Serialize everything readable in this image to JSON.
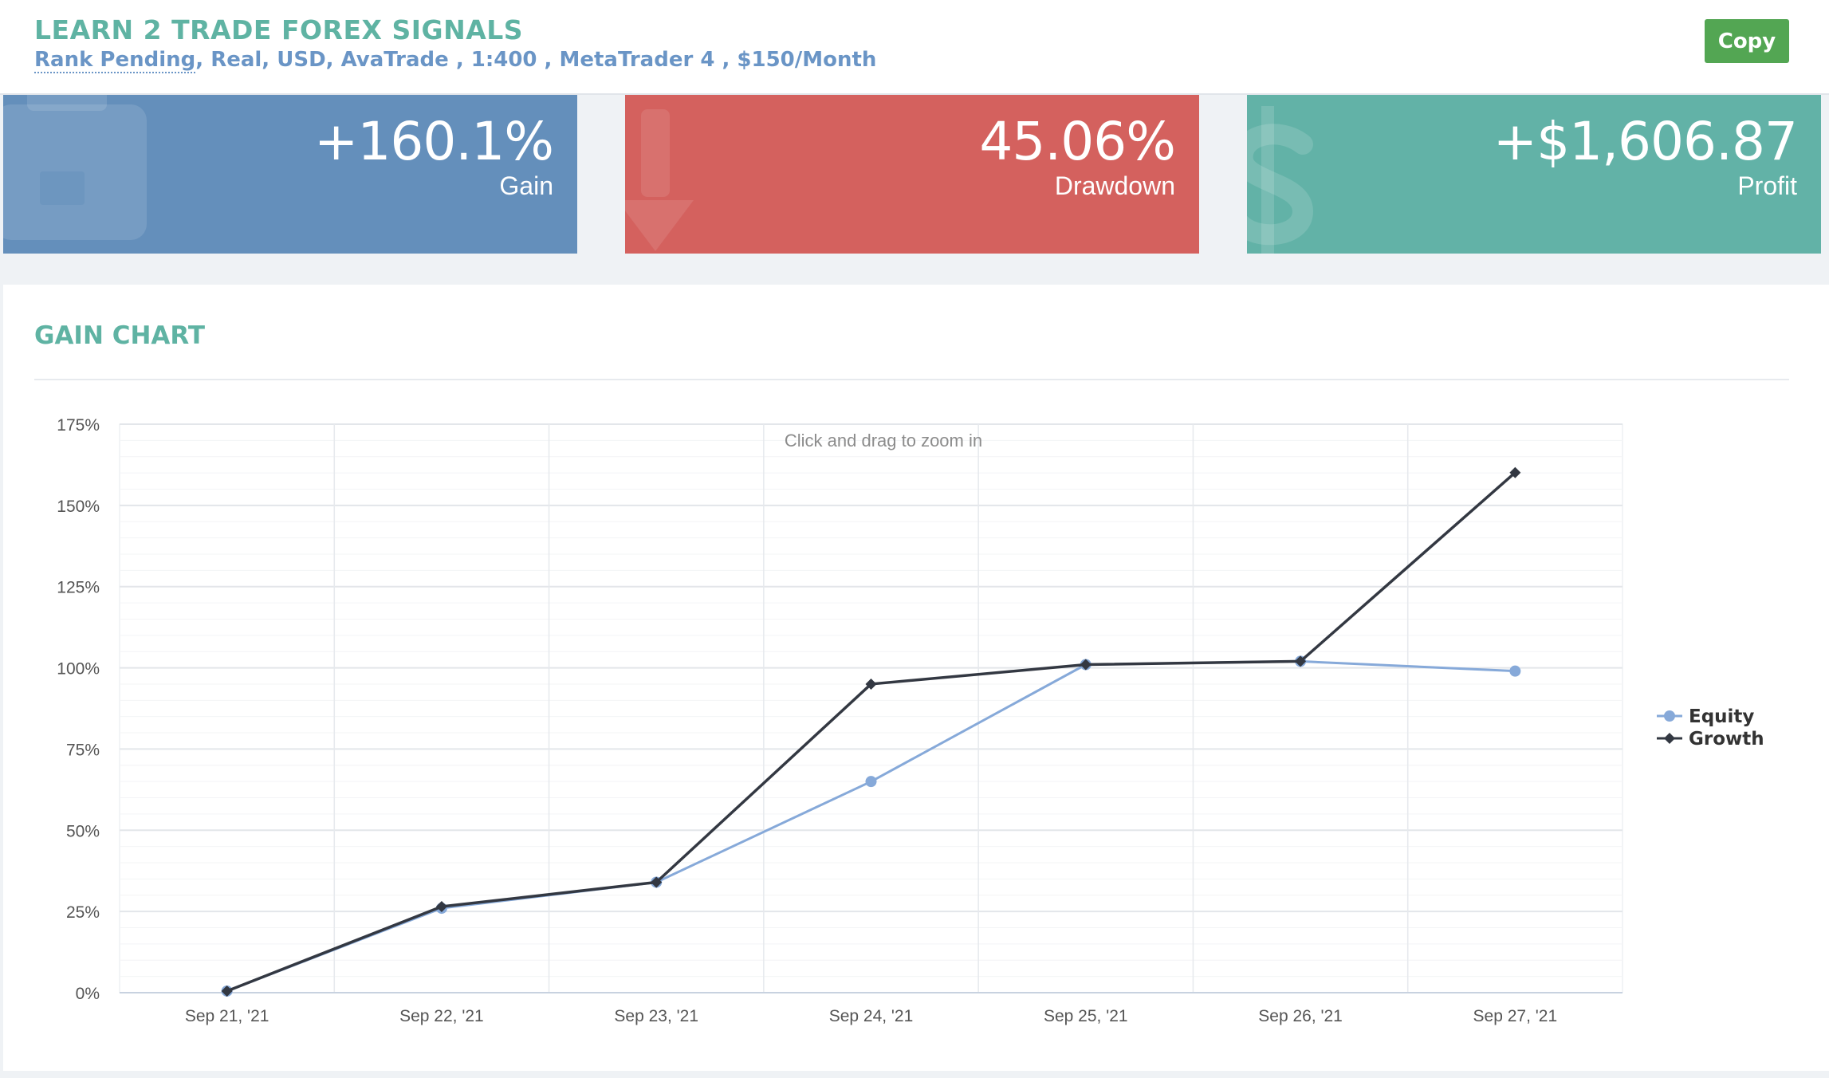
{
  "header": {
    "title": "LEARN 2 TRADE FOREX SIGNALS",
    "rank": "Rank Pending",
    "details": ", Real, USD, AvaTrade , 1:400 , MetaTrader 4 , $150/Month",
    "copy_label": "Copy"
  },
  "tiles": {
    "gain": {
      "value": "+160.1%",
      "label": "Gain",
      "color": "#648fbb",
      "icon": "briefcase-icon"
    },
    "drawdown": {
      "value": "45.06%",
      "label": "Drawdown",
      "color": "#d4615e",
      "icon": "arrow-down-icon"
    },
    "profit": {
      "value": "+$1,606.87",
      "label": "Profit",
      "color": "#62b2a7",
      "icon": "dollar-icon"
    }
  },
  "gain_chart": {
    "title": "GAIN CHART",
    "zoom_hint": "Click and drag to zoom in"
  },
  "colors": {
    "accent": "#5fb3a3",
    "link": "#6a95c6",
    "copy_button": "#53a653",
    "equity_line": "#86a9d9",
    "growth_line": "#333842"
  },
  "chart_data": {
    "type": "line",
    "categories": [
      "Sep 21, '21",
      "Sep 22, '21",
      "Sep 23, '21",
      "Sep 24, '21",
      "Sep 25, '21",
      "Sep 26, '21",
      "Sep 27, '21"
    ],
    "series": [
      {
        "name": "Equity",
        "marker": "circle",
        "color": "#86a9d9",
        "values": [
          0.5,
          26,
          34,
          65,
          101,
          102,
          99
        ]
      },
      {
        "name": "Growth",
        "marker": "diamond",
        "color": "#333842",
        "values": [
          0.5,
          26.5,
          34,
          95,
          101,
          102,
          160.1
        ]
      }
    ],
    "yticks": [
      "0%",
      "25%",
      "50%",
      "75%",
      "100%",
      "125%",
      "150%",
      "175%"
    ],
    "ylim": [
      0,
      175
    ],
    "grid": true,
    "legend": "right",
    "xlabel": "",
    "ylabel": ""
  }
}
